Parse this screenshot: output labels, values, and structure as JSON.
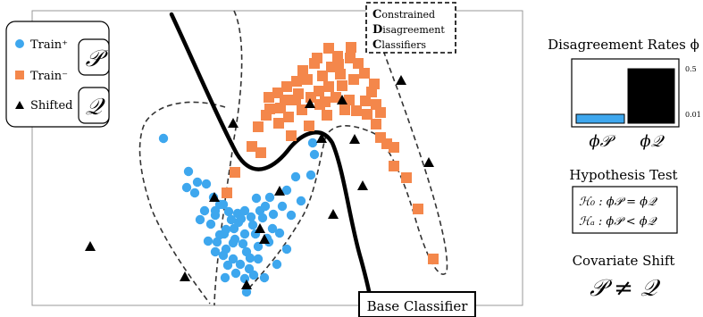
{
  "legend": {
    "train_pos": "Train⁺",
    "train_neg": "Train⁻",
    "shifted": "Shifted",
    "dist_p": "𝒫",
    "dist_q": "𝒬"
  },
  "cdc_box": {
    "line1_initial": "C",
    "line1_rest": "onstrained",
    "line2_initial": "D",
    "line2_rest": "isagreement",
    "line3_initial": "C",
    "line3_rest": "lassifiers"
  },
  "base_classifier_label": "Base Classifier",
  "disagreement": {
    "title": "Disagreement Rates ϕ",
    "tick_high": "0.5",
    "tick_low": "0.01",
    "bar_p_label": "ϕ𝒫",
    "bar_q_label": "ϕ𝒬",
    "bar_p_color": "#3ea7ee",
    "bar_q_color": "#000000"
  },
  "hypothesis": {
    "title": "Hypothesis Test",
    "h0": "ℋ₀ :  ϕ𝒫 = ϕ𝒬",
    "ha": "ℋₐ :  ϕ𝒫 < ϕ𝒬"
  },
  "covariate": {
    "title": "Covariate Shift",
    "formula": "𝒫 ≠ 𝒬"
  },
  "colors": {
    "train_pos": "#3ea7ee",
    "train_neg": "#f4874b",
    "shifted": "#000000"
  }
}
